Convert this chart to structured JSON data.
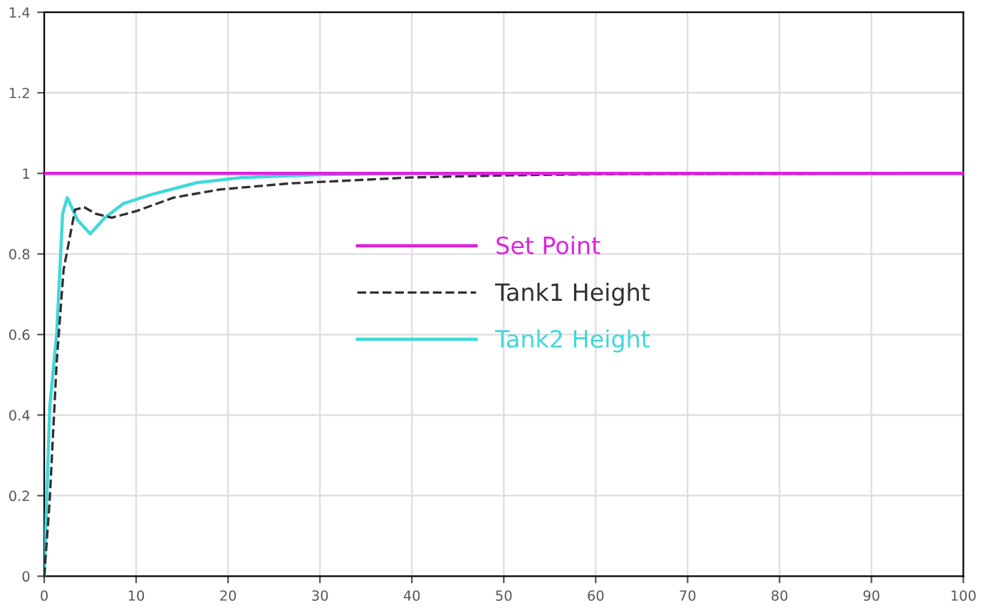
{
  "chart_data": {
    "type": "line",
    "xlim": [
      0,
      100
    ],
    "ylim": [
      0,
      1.4
    ],
    "xticks": [
      0,
      10,
      20,
      30,
      40,
      50,
      60,
      70,
      80,
      90,
      100
    ],
    "yticks": [
      0,
      0.2,
      0.4,
      0.6,
      0.8,
      1,
      1.2,
      1.4
    ],
    "grid": true,
    "legend": "center",
    "marker": "none",
    "series": [
      {
        "name": "Set Point",
        "color": "#e020e0",
        "line_style": "solid",
        "x": [
          0,
          100
        ],
        "values": [
          1,
          1
        ]
      },
      {
        "name": "Tank1 Height",
        "color": "#303030",
        "line_style": "dashed",
        "x": [
          0,
          0.6,
          1.35,
          2.1,
          3.35,
          4.35,
          5.6,
          7.35,
          10.1,
          14.1,
          19.1,
          26.6,
          40,
          50,
          60,
          100
        ],
        "values": [
          0,
          0.19,
          0.53,
          0.76,
          0.91,
          0.916,
          0.9,
          0.89,
          0.907,
          0.94,
          0.96,
          0.975,
          0.99,
          0.995,
          0.998,
          1
        ]
      },
      {
        "name": "Tank2 Height",
        "color": "#40d8d8",
        "line_style": "solid",
        "x": [
          0,
          0.6,
          1.35,
          2.0,
          2.5,
          3.6,
          5.0,
          6.6,
          8.6,
          11.6,
          16.6,
          21.6,
          30,
          40,
          100
        ],
        "values": [
          0,
          0.42,
          0.6,
          0.9,
          0.94,
          0.885,
          0.85,
          0.89,
          0.925,
          0.947,
          0.977,
          0.99,
          0.997,
          1,
          1
        ]
      }
    ]
  }
}
